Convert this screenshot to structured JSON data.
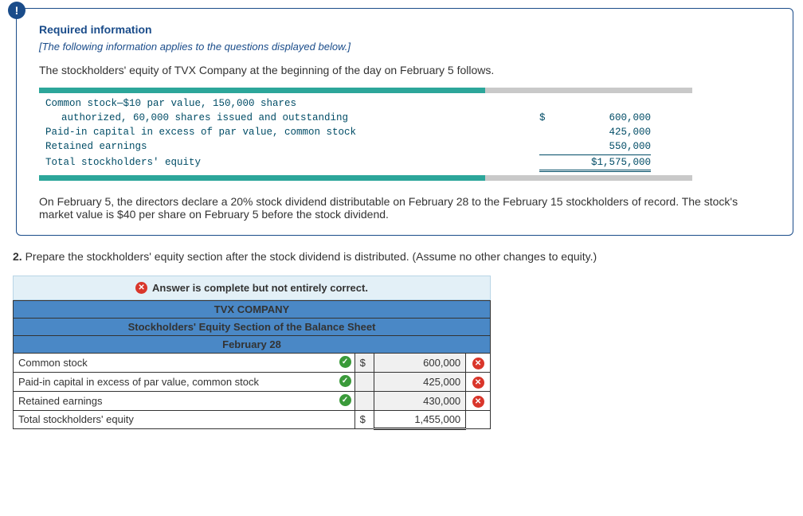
{
  "badge": "!",
  "required_info_title": "Required information",
  "note_italic": "[The following information applies to the questions displayed below.]",
  "intro_text": "The stockholders' equity of TVX Company at the beginning of the day on February 5 follows.",
  "equity_table": {
    "rows": [
      {
        "label": "Common stock—$10 par value, 150,000 shares",
        "amount": "",
        "has_sub": true
      },
      {
        "label": "authorized, 60,000 shares issued and outstanding",
        "amount": "600,000",
        "dollar": true,
        "indent": true
      },
      {
        "label": "Paid-in capital in excess of par value, common stock",
        "amount": "425,000"
      },
      {
        "label": "Retained earnings",
        "amount": "550,000",
        "underline": "single"
      },
      {
        "label": "Total stockholders' equity",
        "amount": "$1,575,000",
        "underline": "double"
      }
    ]
  },
  "followup_text": "On February 5, the directors declare a 20% stock dividend distributable on February 28 to the February 15 stockholders of record. The stock's market value is $40 per share on February 5 before the stock dividend.",
  "question": {
    "number": "2.",
    "text": "Prepare the stockholders' equity section after the stock dividend is distributed. (Assume no other changes to equity.)"
  },
  "feedback_text": "Answer is complete but not entirely correct.",
  "answer_headers": {
    "h1": "TVX COMPANY",
    "h2": "Stockholders' Equity Section of the Balance Sheet",
    "h3": "February 28"
  },
  "answer_rows": [
    {
      "label": "Common stock",
      "currency": "$",
      "value": "600,000",
      "label_mark": "correct",
      "value_mark": "wrong"
    },
    {
      "label": "Paid-in capital in excess of par value, common stock",
      "currency": "",
      "value": "425,000",
      "label_mark": "correct",
      "value_mark": "wrong"
    },
    {
      "label": "Retained earnings",
      "currency": "",
      "value": "430,000",
      "label_mark": "correct",
      "value_mark": "wrong"
    },
    {
      "label": "Total stockholders' equity",
      "currency": "$",
      "value": "1,455,000",
      "label_mark": "",
      "value_mark": "",
      "is_total": true
    }
  ],
  "colors": {
    "primary_blue": "#1a4c8a",
    "table_header_blue": "#4a88c6",
    "banner_bg": "#e3f0f7",
    "mono_text": "#004c66",
    "bar_teal": "#2ca69a",
    "bar_gray": "#c9c9c9"
  }
}
